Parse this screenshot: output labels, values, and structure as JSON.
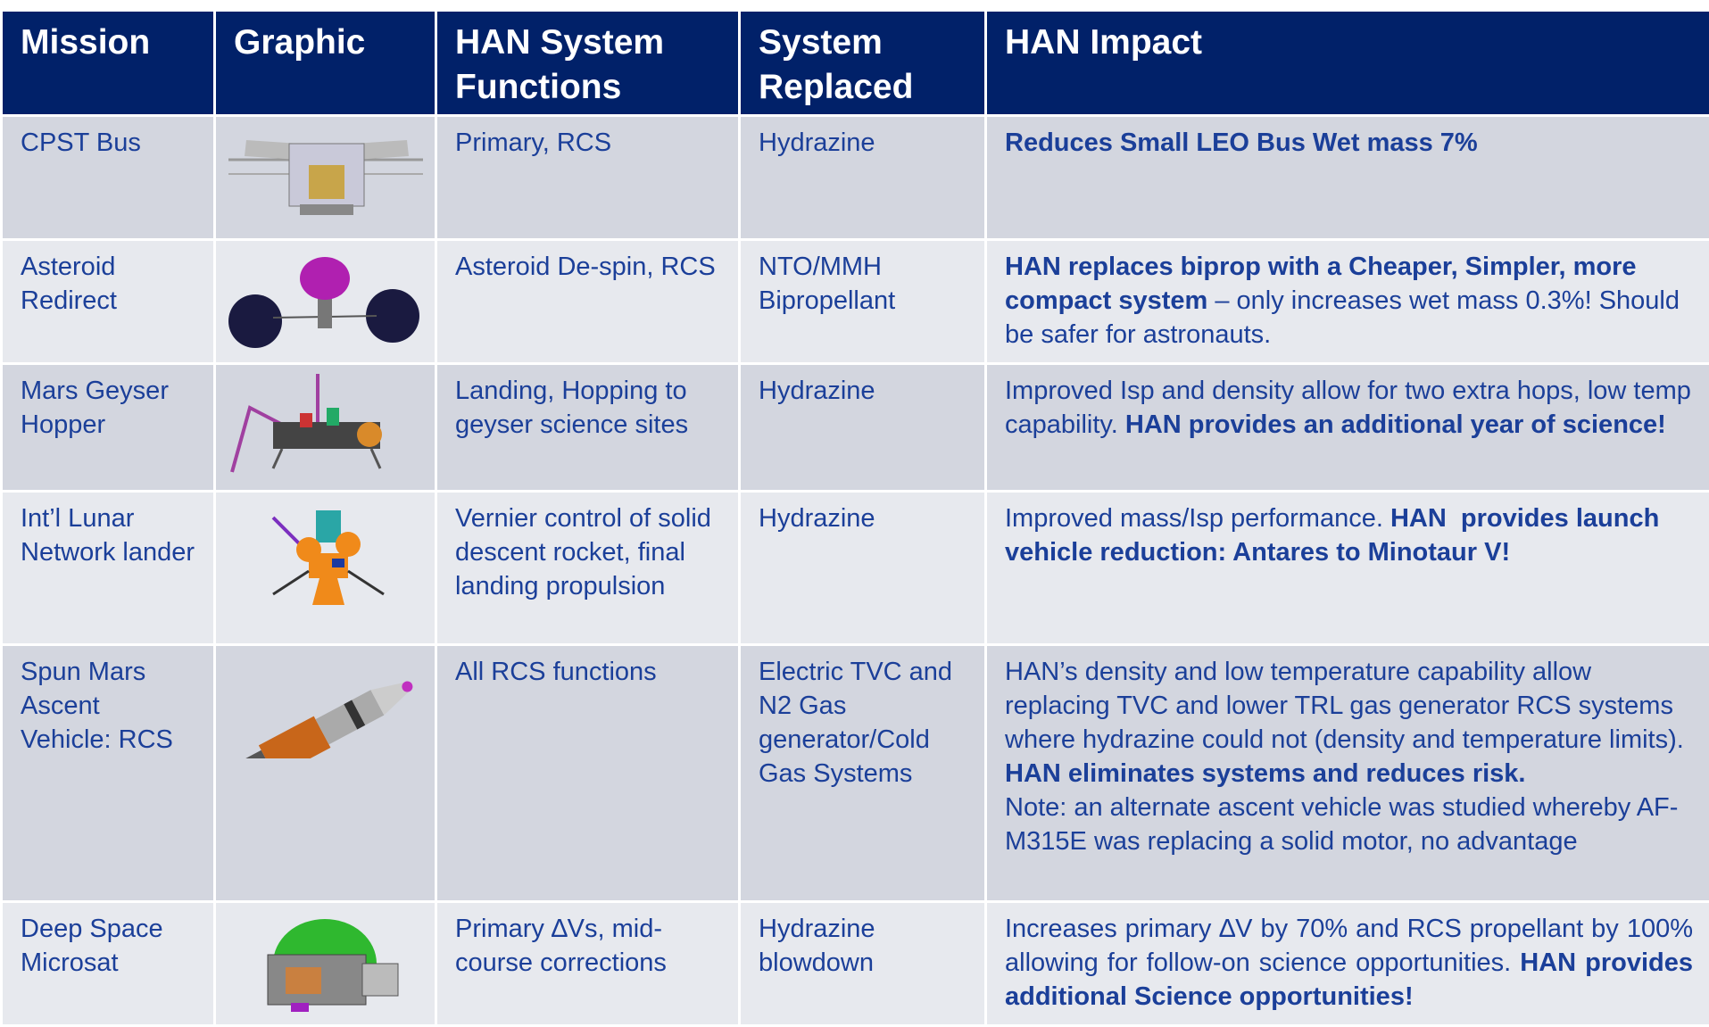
{
  "header": [
    "Mission",
    "Graphic",
    "HAN System Functions",
    "System Replaced",
    "HAN Impact"
  ],
  "rows": [
    {
      "mission": "CPST Bus",
      "functions": "Primary, RCS",
      "replaced": "Hydrazine",
      "impact": [
        [
          {
            "text": "Reduces Small LEO Bus Wet mass 7%",
            "bold": true
          }
        ]
      ]
    },
    {
      "mission": "Asteroid Redirect",
      "functions": "Asteroid De-spin, RCS",
      "replaced": "NTO/MMH Bipropellant",
      "impact": [
        [
          {
            "text": "HAN replaces biprop with a Cheaper, Simpler, more compact system",
            "bold": true
          },
          {
            "text": " – only increases wet mass 0.3%! Should be safer for astronauts.",
            "bold": false
          }
        ]
      ]
    },
    {
      "mission": "Mars Geyser Hopper",
      "functions": "Landing, Hopping to geyser science sites",
      "replaced": "Hydrazine",
      "impact": [
        [
          {
            "text": "Improved Isp and density allow for two extra hops, low temp capability. ",
            "bold": false
          },
          {
            "text": "HAN provides an additional year of science!",
            "bold": true
          }
        ]
      ]
    },
    {
      "mission": "Int’l Lunar Network lander",
      "functions": "Vernier control of solid descent rocket, final landing propulsion",
      "replaced": "Hydrazine",
      "impact": [
        [
          {
            "text": "Improved mass/Isp performance. ",
            "bold": false
          },
          {
            "text": "HAN  provides launch vehicle reduction: Antares to Minotaur V!",
            "bold": true
          }
        ]
      ]
    },
    {
      "mission": "Spun Mars Ascent Vehicle: RCS",
      "functions": "All RCS functions",
      "replaced": "Electric TVC and N2 Gas generator/Cold Gas Systems",
      "impact": [
        [
          {
            "text": "HAN’s density and low temperature capability allow replacing TVC and lower TRL gas generator RCS systems where hydrazine could not (density and temperature limits). ",
            "bold": false
          },
          {
            "text": "HAN eliminates systems and reduces risk.",
            "bold": true
          }
        ],
        [
          {
            "text": "Note: an alternate ascent vehicle was studied whereby AF-M315E was replacing a solid motor, no advantage",
            "bold": false
          }
        ]
      ]
    },
    {
      "mission": "Deep Space Microsat",
      "functions": "Primary ∆Vs, mid-course corrections",
      "replaced": "Hydrazine blowdown",
      "impact": [
        [
          {
            "text": "Increases primary ∆V by 70% and RCS propellant by 100% allowing for follow-on science opportunities. ",
            "bold": false
          },
          {
            "text": "HAN provides additional Science opportunities!",
            "bold": true
          }
        ]
      ]
    }
  ]
}
